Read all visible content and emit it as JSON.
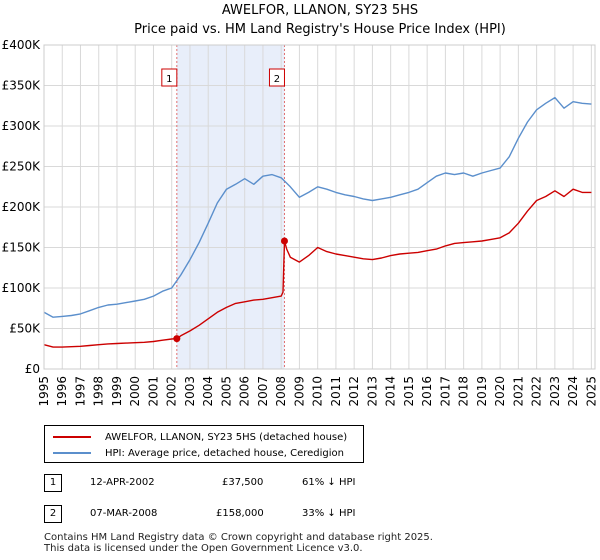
{
  "chart_data": {
    "type": "line",
    "title": "AWELFOR, LLANON, SY23 5HS",
    "subtitle": "Price paid vs. HM Land Registry's House Price Index (HPI)",
    "xlim": [
      1995.0,
      2025.2
    ],
    "ylim": [
      0,
      400000
    ],
    "yticks": [
      0,
      50000,
      100000,
      150000,
      200000,
      250000,
      300000,
      350000,
      400000
    ],
    "ytick_labels": [
      "£0",
      "£50K",
      "£100K",
      "£150K",
      "£200K",
      "£250K",
      "£300K",
      "£350K",
      "£400K"
    ],
    "xticks": [
      1995,
      1996,
      1997,
      1998,
      1999,
      2000,
      2001,
      2002,
      2003,
      2004,
      2005,
      2006,
      2007,
      2008,
      2009,
      2010,
      2011,
      2012,
      2013,
      2014,
      2015,
      2016,
      2017,
      2018,
      2019,
      2020,
      2021,
      2022,
      2023,
      2024,
      2025
    ],
    "xtick_labels": [
      "1995",
      "1996",
      "1997",
      "1998",
      "1999",
      "2000",
      "2001",
      "2002",
      "2003",
      "2004",
      "2005",
      "2006",
      "2007",
      "2008",
      "2009",
      "2010",
      "2011",
      "2012",
      "2013",
      "2014",
      "2015",
      "2016",
      "2017",
      "2018",
      "2019",
      "2020",
      "2021",
      "2022",
      "2023",
      "2024",
      "2025"
    ],
    "grid": true,
    "shaded_region": [
      2002.28,
      2008.18
    ],
    "series": [
      {
        "name": "AWELFOR, LLANON, SY23 5HS (detached house)",
        "color": "#cc0000",
        "x": [
          1995.0,
          1995.5,
          1996.0,
          1996.5,
          1997.0,
          1997.5,
          1998.0,
          1998.5,
          1999.0,
          1999.5,
          2000.0,
          2000.5,
          2001.0,
          2001.5,
          2002.0,
          2002.28,
          2002.5,
          2003.0,
          2003.5,
          2004.0,
          2004.5,
          2005.0,
          2005.5,
          2006.0,
          2006.5,
          2007.0,
          2007.5,
          2008.0,
          2008.1,
          2008.18,
          2008.3,
          2008.5,
          2009.0,
          2009.5,
          2010.0,
          2010.5,
          2011.0,
          2011.5,
          2012.0,
          2012.5,
          2013.0,
          2013.5,
          2014.0,
          2014.5,
          2015.0,
          2015.5,
          2016.0,
          2016.5,
          2017.0,
          2017.5,
          2018.0,
          2018.5,
          2019.0,
          2019.5,
          2020.0,
          2020.5,
          2021.0,
          2021.5,
          2022.0,
          2022.5,
          2023.0,
          2023.5,
          2024.0,
          2024.5,
          2025.0
        ],
        "values": [
          30000,
          27000,
          27000,
          27500,
          28000,
          29000,
          30000,
          31000,
          31500,
          32000,
          32500,
          33000,
          34000,
          35500,
          37000,
          37500,
          41000,
          47000,
          54000,
          62000,
          70000,
          76000,
          81000,
          83000,
          85000,
          86000,
          88000,
          90000,
          95000,
          158000,
          148000,
          138000,
          132000,
          140000,
          150000,
          145000,
          142000,
          140000,
          138000,
          136000,
          135000,
          137000,
          140000,
          142000,
          143000,
          144000,
          146000,
          148000,
          152000,
          155000,
          156000,
          157000,
          158000,
          160000,
          162000,
          168000,
          180000,
          195000,
          208000,
          213000,
          220000,
          213000,
          222000,
          218000,
          218000
        ]
      },
      {
        "name": "HPI: Average price, detached house, Ceredigion",
        "color": "#5b8fcc",
        "x": [
          1995.0,
          1995.5,
          1996.0,
          1996.5,
          1997.0,
          1997.5,
          1998.0,
          1998.5,
          1999.0,
          1999.5,
          2000.0,
          2000.5,
          2001.0,
          2001.5,
          2002.0,
          2002.5,
          2003.0,
          2003.5,
          2004.0,
          2004.5,
          2005.0,
          2005.5,
          2006.0,
          2006.5,
          2007.0,
          2007.5,
          2008.0,
          2008.5,
          2009.0,
          2009.5,
          2010.0,
          2010.5,
          2011.0,
          2011.5,
          2012.0,
          2012.5,
          2013.0,
          2013.5,
          2014.0,
          2014.5,
          2015.0,
          2015.5,
          2016.0,
          2016.5,
          2017.0,
          2017.5,
          2018.0,
          2018.5,
          2019.0,
          2019.5,
          2020.0,
          2020.5,
          2021.0,
          2021.5,
          2022.0,
          2022.5,
          2023.0,
          2023.5,
          2024.0,
          2024.5,
          2025.0
        ],
        "values": [
          70000,
          64000,
          65000,
          66000,
          68000,
          72000,
          76000,
          79000,
          80000,
          82000,
          84000,
          86000,
          90000,
          96000,
          100000,
          116000,
          135000,
          156000,
          180000,
          205000,
          222000,
          228000,
          235000,
          228000,
          238000,
          240000,
          236000,
          225000,
          212000,
          218000,
          225000,
          222000,
          218000,
          215000,
          213000,
          210000,
          208000,
          210000,
          212000,
          215000,
          218000,
          222000,
          230000,
          238000,
          242000,
          240000,
          242000,
          238000,
          242000,
          245000,
          248000,
          262000,
          285000,
          305000,
          320000,
          328000,
          335000,
          322000,
          330000,
          328000,
          327000
        ]
      }
    ],
    "annotations": [
      {
        "label": "1",
        "x": 2002.28,
        "value": 37500
      },
      {
        "label": "2",
        "x": 2008.18,
        "value": 158000
      }
    ]
  },
  "legend": {
    "entries": [
      {
        "label": "AWELFOR, LLANON, SY23 5HS (detached house)",
        "color": "#cc0000"
      },
      {
        "label": "HPI: Average price, detached house, Ceredigion",
        "color": "#5b8fcc"
      }
    ]
  },
  "transactions": [
    {
      "num": "1",
      "date": "12-APR-2002",
      "price": "£37,500",
      "hpi": "61% ↓ HPI"
    },
    {
      "num": "2",
      "date": "07-MAR-2008",
      "price": "£158,000",
      "hpi": "33% ↓ HPI"
    }
  ],
  "footer": {
    "line1": "Contains HM Land Registry data © Crown copyright and database right 2025.",
    "line2": "This data is licensed under the Open Government Licence v3.0."
  }
}
